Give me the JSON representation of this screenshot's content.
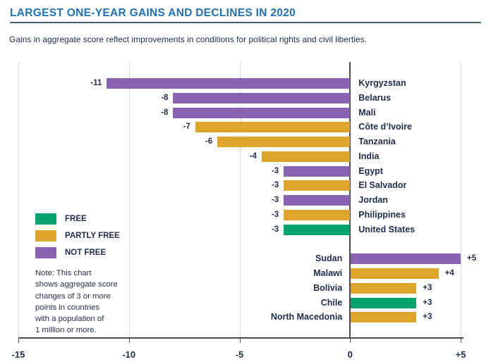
{
  "header": {
    "title": "LARGEST ONE-YEAR GAINS AND DECLINES IN 2020",
    "subtitle": "Gains in aggregate score reflect improvements in conditions for political rights and civil liberties."
  },
  "colors": {
    "free": "#00a46a",
    "partly_free": "#dfa42c",
    "not_free": "#8962b0",
    "title_blue": "#2070b0",
    "text_navy": "#1e2b49",
    "axis_gray": "#4d4d4f",
    "gridline_gray": "#bcbcbe"
  },
  "legend": {
    "items": [
      {
        "label": "FREE",
        "status": "free"
      },
      {
        "label": "PARTLY FREE",
        "status": "partly_free"
      },
      {
        "label": "NOT FREE",
        "status": "not_free"
      }
    ]
  },
  "note": "Note: This chart\nshows aggregate score\nchanges of 3 or more\npoints in countries\nwith a population of\n1 million or more.",
  "chart_data": {
    "type": "bar",
    "orientation": "horizontal",
    "title": "LARGEST ONE-YEAR GAINS AND DECLINES IN 2020",
    "xlim": [
      -15,
      5
    ],
    "grid": "vertical-dotted",
    "axis_ticks": [
      {
        "value": -15,
        "label": "-15"
      },
      {
        "value": -10,
        "label": "-10"
      },
      {
        "value": -5,
        "label": "-5"
      },
      {
        "value": 0,
        "label": "0"
      },
      {
        "value": 5,
        "label": "+5"
      }
    ],
    "rows": [
      {
        "country": "Kyrgyzstan",
        "value": -11,
        "label": "-11",
        "status": "not_free",
        "group": "declines"
      },
      {
        "country": "Belarus",
        "value": -8,
        "label": "-8",
        "status": "not_free",
        "group": "declines"
      },
      {
        "country": "Mali",
        "value": -8,
        "label": "-8",
        "status": "not_free",
        "group": "declines"
      },
      {
        "country": "Côte d’Ivoire",
        "value": -7,
        "label": "-7",
        "status": "partly_free",
        "group": "declines"
      },
      {
        "country": "Tanzania",
        "value": -6,
        "label": "-6",
        "status": "partly_free",
        "group": "declines"
      },
      {
        "country": "India",
        "value": -4,
        "label": "-4",
        "status": "partly_free",
        "group": "declines"
      },
      {
        "country": "Egypt",
        "value": -3,
        "label": "-3",
        "status": "not_free",
        "group": "declines"
      },
      {
        "country": "El Salvador",
        "value": -3,
        "label": "-3",
        "status": "partly_free",
        "group": "declines"
      },
      {
        "country": "Jordan",
        "value": -3,
        "label": "-3",
        "status": "not_free",
        "group": "declines"
      },
      {
        "country": "Philippines",
        "value": -3,
        "label": "-3",
        "status": "partly_free",
        "group": "declines"
      },
      {
        "country": "United States",
        "value": -3,
        "label": "-3",
        "status": "free",
        "group": "declines"
      },
      {
        "country": "Sudan",
        "value": 5,
        "label": "+5",
        "status": "not_free",
        "group": "gains"
      },
      {
        "country": "Malawi",
        "value": 4,
        "label": "+4",
        "status": "partly_free",
        "group": "gains"
      },
      {
        "country": "Bolivia",
        "value": 3,
        "label": "+3",
        "status": "partly_free",
        "group": "gains"
      },
      {
        "country": "Chile",
        "value": 3,
        "label": "+3",
        "status": "free",
        "group": "gains"
      },
      {
        "country": "North Macedonia",
        "value": 3,
        "label": "+3",
        "status": "partly_free",
        "group": "gains"
      }
    ]
  }
}
